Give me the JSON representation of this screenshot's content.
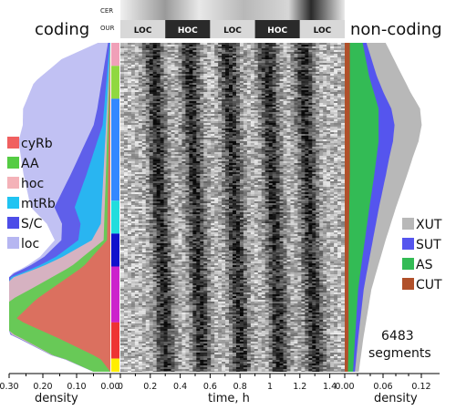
{
  "chart_data": [
    {
      "type": "area",
      "panel": "coding",
      "title": "coding",
      "xlabel": "density",
      "x_ticks": [
        "0.30",
        "0.20",
        "0.10",
        "0.00"
      ],
      "xlim": [
        0.3,
        0.0
      ],
      "legend": [
        "cyRb",
        "AA",
        "hoc",
        "mtRb",
        "S/C",
        "loc"
      ],
      "series": [
        {
          "name": "loc",
          "color": "#b6b6f1",
          "profile": [
            [
              0,
              0.03
            ],
            [
              0.05,
              0.13
            ],
            [
              0.12,
              0.2
            ],
            [
              0.2,
              0.22
            ],
            [
              0.3,
              0.2
            ],
            [
              0.4,
              0.14
            ],
            [
              0.5,
              0.07
            ],
            [
              0.6,
              0.02
            ],
            [
              0.7,
              0.005
            ],
            [
              1,
              0
            ]
          ]
        },
        {
          "name": "S/C",
          "color": "#4d4de8",
          "profile": [
            [
              0,
              0.005
            ],
            [
              0.2,
              0.02
            ],
            [
              0.35,
              0.04
            ],
            [
              0.5,
              0.06
            ],
            [
              0.6,
              0.05
            ],
            [
              0.7,
              0.02
            ],
            [
              0.8,
              0.005
            ],
            [
              1,
              0
            ]
          ]
        },
        {
          "name": "mtRb",
          "color": "#20c4f2",
          "profile": [
            [
              0,
              0.002
            ],
            [
              0.25,
              0.01
            ],
            [
              0.4,
              0.05
            ],
            [
              0.5,
              0.08
            ],
            [
              0.55,
              0.06
            ],
            [
              0.65,
              0.02
            ],
            [
              0.75,
              0
            ]
          ]
        },
        {
          "name": "hoc",
          "color": "#f4b2b8",
          "profile": [
            [
              0,
              0.0
            ],
            [
              0.55,
              0.01
            ],
            [
              0.65,
              0.06
            ],
            [
              0.72,
              0.12
            ],
            [
              0.78,
              0.06
            ],
            [
              0.85,
              0.01
            ],
            [
              1,
              0
            ]
          ]
        },
        {
          "name": "AA",
          "color": "#55cc44",
          "profile": [
            [
              0,
              0.0
            ],
            [
              0.6,
              0.01
            ],
            [
              0.75,
              0.06
            ],
            [
              0.85,
              0.1
            ],
            [
              0.95,
              0.12
            ],
            [
              1,
              0.05
            ]
          ]
        },
        {
          "name": "cyRb",
          "color": "#f06060",
          "profile": [
            [
              0,
              0.0
            ],
            [
              0.6,
              0.01
            ],
            [
              0.68,
              0.08
            ],
            [
              0.78,
              0.22
            ],
            [
              0.84,
              0.28
            ],
            [
              0.9,
              0.15
            ],
            [
              0.96,
              0.03
            ],
            [
              1,
              0.0
            ]
          ]
        }
      ]
    },
    {
      "type": "heatmap",
      "panel": "center",
      "xlabel": "time, h",
      "x_ticks": [
        "0",
        "0.2",
        "0.4",
        "0.6",
        "0.8",
        "1",
        "1.2",
        "1.4"
      ],
      "xlim": [
        0,
        1.5
      ],
      "rows": "6483 segments",
      "band_labels": [
        "CER",
        "OUR"
      ],
      "phases": [
        "LOC",
        "HOC",
        "LOC",
        "HOC",
        "LOC"
      ],
      "dark_phase_times": [
        0.22,
        0.46,
        0.72,
        0.98,
        1.22
      ],
      "class_colors": [
        "#f0a0b8",
        "#90d840",
        "#3388ff",
        "#22dddd",
        "#1111cc",
        "#cc22cc",
        "#ee3333",
        "#ffee00"
      ]
    },
    {
      "type": "area",
      "panel": "non-coding",
      "title": "non-coding",
      "xlabel": "density",
      "x_ticks": [
        "0.00",
        "0.06",
        "0.12"
      ],
      "xlim": [
        0.0,
        0.12
      ],
      "legend": [
        "XUT",
        "SUT",
        "AS",
        "CUT"
      ],
      "series": [
        {
          "name": "CUT",
          "color": "#b0502a",
          "profile": [
            [
              0,
              0.008
            ],
            [
              0.4,
              0.008
            ],
            [
              0.5,
              0.007
            ],
            [
              0.7,
              0.006
            ],
            [
              0.9,
              0.006
            ],
            [
              1,
              0.005
            ]
          ]
        },
        {
          "name": "AS",
          "color": "#33bb55",
          "profile": [
            [
              0,
              0.02
            ],
            [
              0.1,
              0.03
            ],
            [
              0.2,
              0.045
            ],
            [
              0.3,
              0.045
            ],
            [
              0.45,
              0.035
            ],
            [
              0.6,
              0.025
            ],
            [
              0.75,
              0.015
            ],
            [
              0.9,
              0.01
            ],
            [
              1,
              0.008
            ]
          ]
        },
        {
          "name": "SUT",
          "color": "#5555ee",
          "profile": [
            [
              0,
              0.006
            ],
            [
              0.15,
              0.015
            ],
            [
              0.25,
              0.025
            ],
            [
              0.35,
              0.02
            ],
            [
              0.5,
              0.015
            ],
            [
              0.7,
              0.01
            ],
            [
              0.9,
              0.005
            ],
            [
              1,
              0.003
            ]
          ]
        },
        {
          "name": "XUT",
          "color": "#b8b8b8",
          "profile": [
            [
              0,
              0.03
            ],
            [
              0.1,
              0.04
            ],
            [
              0.2,
              0.045
            ],
            [
              0.3,
              0.04
            ],
            [
              0.45,
              0.03
            ],
            [
              0.6,
              0.02
            ],
            [
              0.75,
              0.012
            ],
            [
              0.9,
              0.008
            ],
            [
              1,
              0.006
            ]
          ]
        }
      ]
    }
  ],
  "annotation": {
    "line1": "6483",
    "line2": "segments"
  }
}
